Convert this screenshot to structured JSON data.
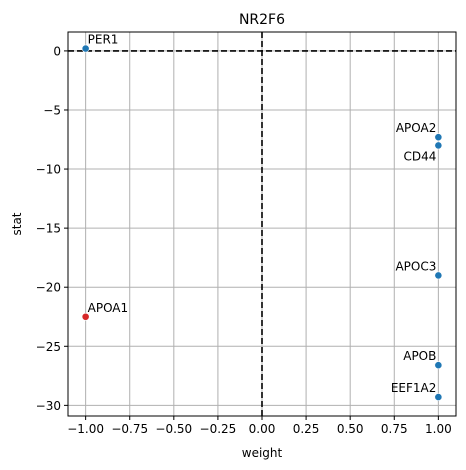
{
  "chart_data": {
    "type": "scatter",
    "title": "NR2F6",
    "xlabel": "weight",
    "ylabel": "stat",
    "xlim": [
      -1.1,
      1.1
    ],
    "ylim": [
      -30.9,
      1.6
    ],
    "grid": true,
    "reference_lines": {
      "x": 0,
      "y": 0,
      "style": "dashed",
      "color": "#000000"
    },
    "x_ticks": [
      -1.0,
      -0.75,
      -0.5,
      -0.25,
      0.0,
      0.25,
      0.5,
      0.75,
      1.0
    ],
    "x_tick_labels": [
      "−1.00",
      "−0.75",
      "−0.50",
      "−0.25",
      "0.00",
      "0.25",
      "0.50",
      "0.75",
      "1.00"
    ],
    "y_ticks": [
      0,
      -5,
      -10,
      -15,
      -20,
      -25,
      -30
    ],
    "y_tick_labels": [
      "0",
      "−5",
      "−10",
      "−15",
      "−20",
      "−25",
      "−30"
    ],
    "colors": {
      "positive": "#1f77b4",
      "negative": "#d62728"
    },
    "points": [
      {
        "label": "PER1",
        "x": -1.0,
        "y": 0.2,
        "color": "#1f77b4",
        "label_pos": "upper-right"
      },
      {
        "label": "APOA1",
        "x": -1.0,
        "y": -22.5,
        "color": "#d62728",
        "label_pos": "upper-right"
      },
      {
        "label": "APOA2",
        "x": 1.0,
        "y": -7.3,
        "color": "#1f77b4",
        "label_pos": "upper-left"
      },
      {
        "label": "CD44",
        "x": 1.0,
        "y": -8.0,
        "color": "#1f77b4",
        "label_pos": "lower-left"
      },
      {
        "label": "APOC3",
        "x": 1.0,
        "y": -19.0,
        "color": "#1f77b4",
        "label_pos": "upper-left"
      },
      {
        "label": "APOB",
        "x": 1.0,
        "y": -26.6,
        "color": "#1f77b4",
        "label_pos": "upper-left"
      },
      {
        "label": "EEF1A2",
        "x": 1.0,
        "y": -29.3,
        "color": "#1f77b4",
        "label_pos": "upper-left"
      }
    ]
  }
}
